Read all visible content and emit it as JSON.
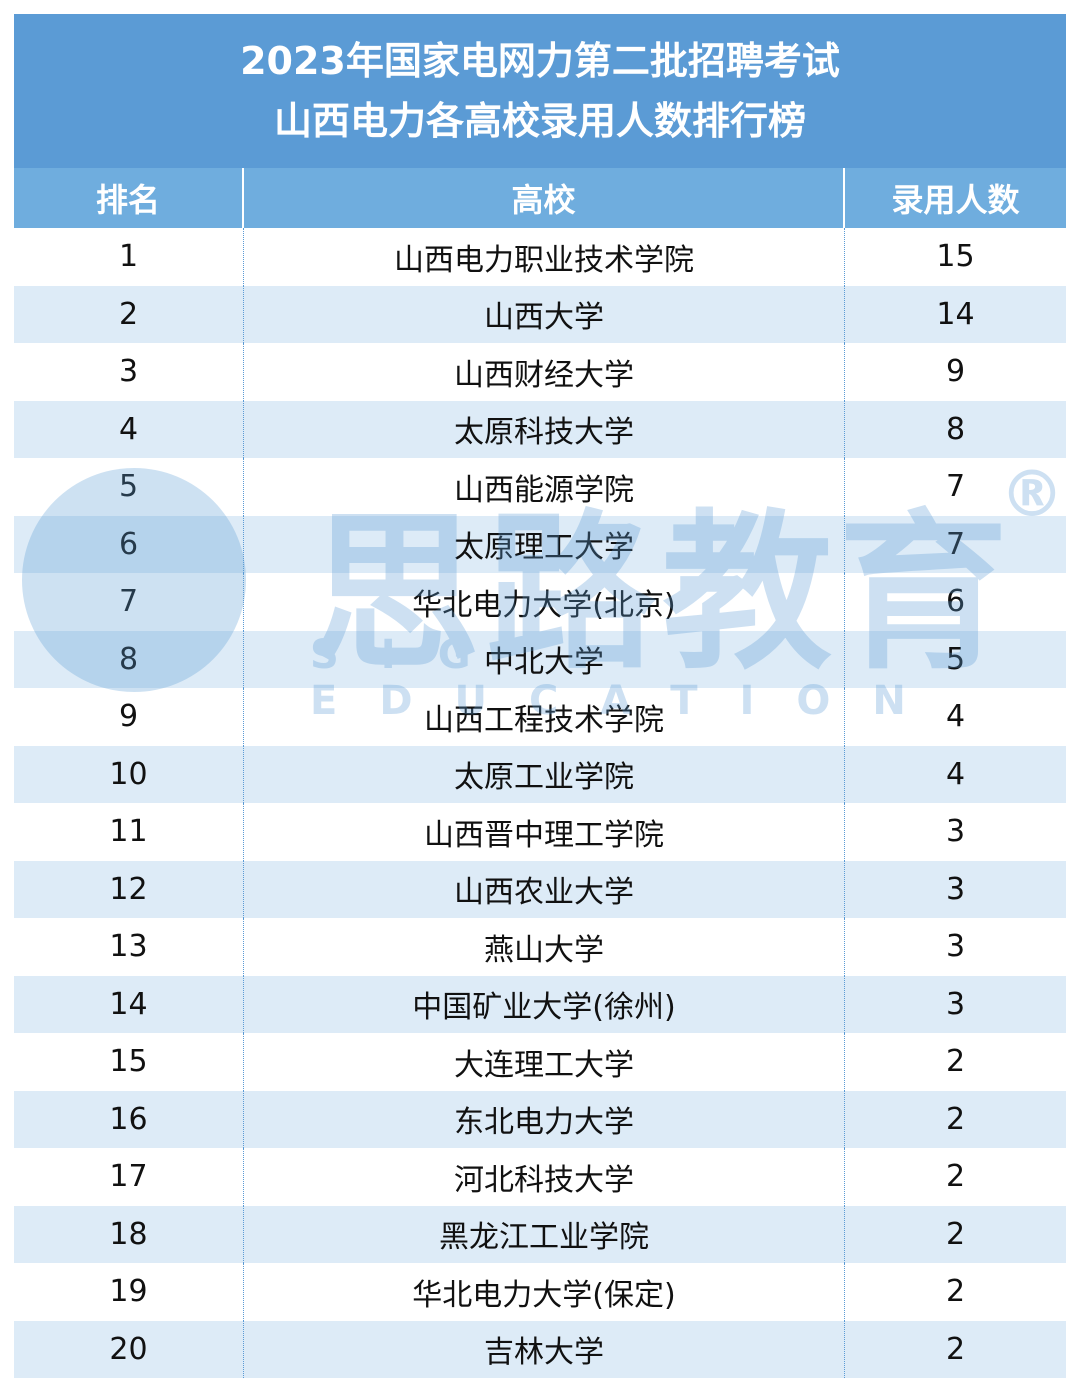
{
  "header": {
    "title_line1": "2023年国家电网力第二批招聘考试",
    "title_line2": "山西电力各高校录用人数排行榜"
  },
  "table": {
    "columns": [
      "排名",
      "高校",
      "录用人数"
    ],
    "rows": [
      [
        1,
        "山西电力职业技术学院",
        15
      ],
      [
        2,
        "山西大学",
        14
      ],
      [
        3,
        "山西财经大学",
        9
      ],
      [
        4,
        "太原科技大学",
        8
      ],
      [
        5,
        "山西能源学院",
        7
      ],
      [
        6,
        "太原理工大学",
        7
      ],
      [
        7,
        "华北电力大学(北京)",
        6
      ],
      [
        8,
        "中北大学",
        5
      ],
      [
        9,
        "山西工程技术学院",
        4
      ],
      [
        10,
        "太原工业学院",
        4
      ],
      [
        11,
        "山西晋中理工学院",
        3
      ],
      [
        12,
        "山西农业大学",
        3
      ],
      [
        13,
        "燕山大学",
        3
      ],
      [
        14,
        "中国矿业大学(徐州)",
        3
      ],
      [
        15,
        "大连理工大学",
        2
      ],
      [
        16,
        "东北电力大学",
        2
      ],
      [
        17,
        "河北科技大学",
        2
      ],
      [
        18,
        "黑龙江工业学院",
        2
      ],
      [
        19,
        "华北电力大学(保定)",
        2
      ],
      [
        20,
        "吉林大学",
        2
      ]
    ]
  },
  "watermark": {
    "brand": "思路教育",
    "brand_en": "SIG EDUCATION",
    "registered": "®"
  }
}
